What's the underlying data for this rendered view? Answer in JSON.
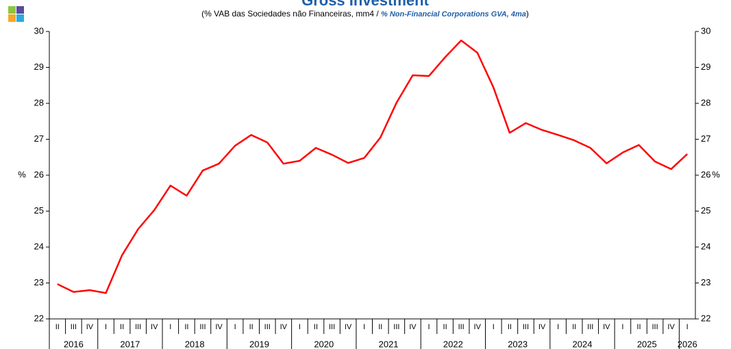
{
  "chart_data": {
    "type": "line",
    "title": "Gross Investment",
    "subtitle": [
      "(% VAB das Sociedades não Financeiras, mm4 / ",
      "% Non-Financial Corporations GVA, 4ma",
      ")"
    ],
    "y_label": "%",
    "y2_label": "%",
    "categories": [
      "II",
      "III",
      "IV",
      "I",
      "II",
      "III",
      "IV",
      "I",
      "II",
      "III",
      "IV",
      "I",
      "II",
      "III",
      "IV",
      "I",
      "II",
      "III",
      "IV",
      "I",
      "II",
      "III",
      "IV",
      "I",
      "II",
      "III",
      "IV",
      "I",
      "II",
      "III",
      "IV",
      "I",
      "II",
      "III",
      "IV",
      "I",
      "II",
      "III",
      "IV",
      "I"
    ],
    "year_labels": [
      "2016",
      "2017",
      "2018",
      "2019",
      "2020",
      "2021",
      "2022",
      "2023",
      "2024",
      "2025",
      "2026"
    ],
    "series": [
      {
        "name": "Gross Investment",
        "color": "#ff0000",
        "values": [
          22.97,
          22.75,
          22.8,
          22.72,
          23.77,
          24.5,
          25.03,
          25.71,
          25.43,
          26.13,
          26.32,
          26.82,
          27.12,
          26.91,
          26.32,
          26.4,
          26.76,
          26.57,
          26.34,
          26.48,
          27.05,
          28.02,
          28.78,
          28.76,
          29.28,
          29.75,
          29.41,
          28.44,
          27.18,
          27.45,
          27.26,
          27.12,
          26.97,
          26.76,
          26.33,
          26.63,
          26.84,
          26.38,
          26.17,
          26.59
        ]
      }
    ],
    "ylim": [
      22,
      30
    ],
    "yticks": [
      22,
      23,
      24,
      25,
      26,
      27,
      28,
      29,
      30
    ],
    "y2lim": [
      22,
      30
    ],
    "y2ticks": [
      22,
      23,
      24,
      25,
      26,
      27,
      28,
      29,
      30
    ]
  }
}
